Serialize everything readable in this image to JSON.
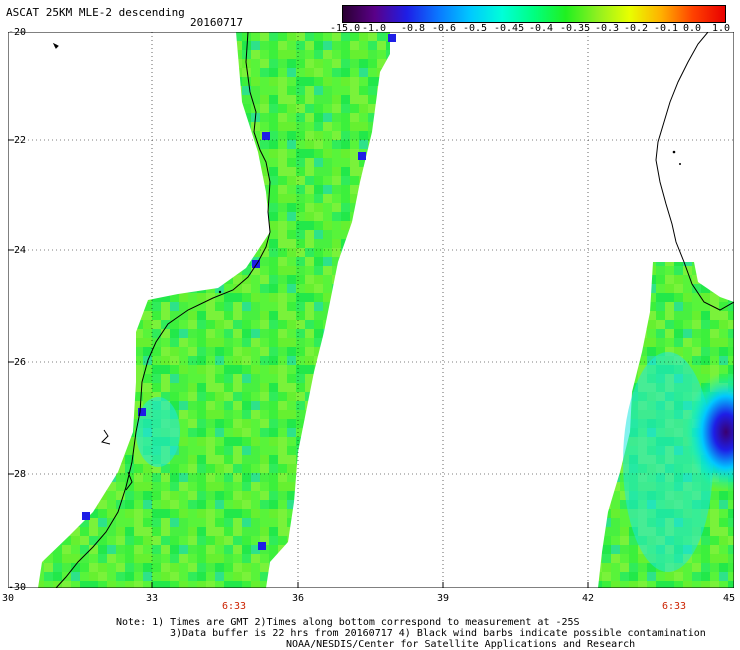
{
  "header": {
    "title": "ASCAT 25KM MLE-2 descending",
    "date": "20160717"
  },
  "colorbar": {
    "ticks": [
      "-15.0",
      "-1.0",
      "-0.8",
      "-0.6",
      "-0.5",
      "-0.45",
      "-0.4",
      "-0.35",
      "-0.3",
      "-0.2",
      "-0.1",
      "0.0",
      "1.0"
    ],
    "colors": [
      "#2a0032",
      "#5a0088",
      "#1e1ee6",
      "#0a78ff",
      "#00c8ff",
      "#00ffd8",
      "#00ff80",
      "#20f020",
      "#90f020",
      "#e8ff00",
      "#ffb000",
      "#ff4000",
      "#e80000"
    ]
  },
  "map": {
    "lat_labels": [
      "-20",
      "-22",
      "-24",
      "-26",
      "-28",
      "-30"
    ],
    "lon_labels": [
      "30",
      "33",
      "36",
      "39",
      "42",
      "45"
    ],
    "time_labels": [
      "6:33",
      "6:33"
    ],
    "grid": true
  },
  "notes": {
    "line1": "Note: 1) Times are GMT 2)Times along bottom correspond to measurement at -25S",
    "line2": "3)Data buffer is 22 hrs from 20160717 4) Black wind barbs indicate possible contamination",
    "line3": "NOAA/NESDIS/Center for Satellite Applications and Research"
  }
}
